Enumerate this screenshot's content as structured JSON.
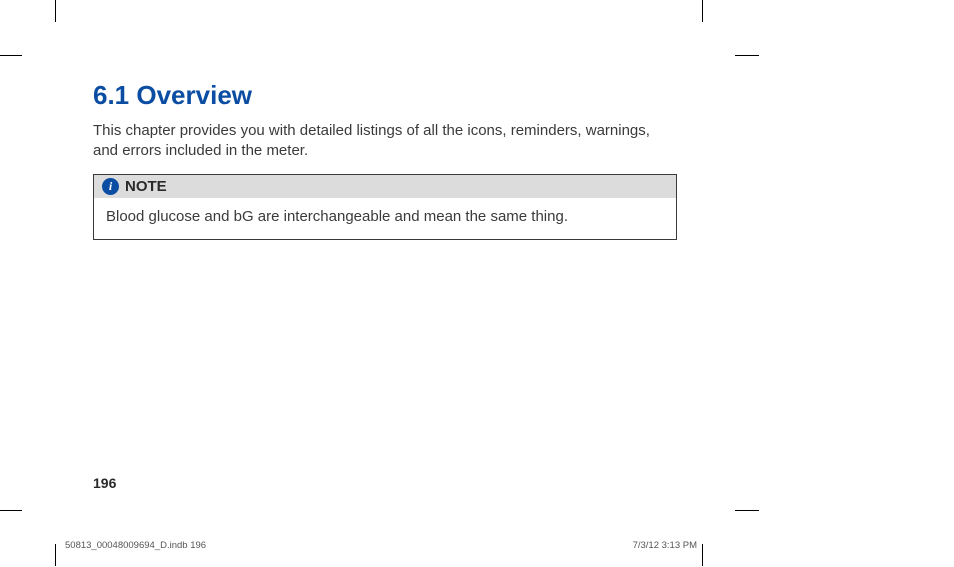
{
  "heading": "6.1 Overview",
  "intro": "This chapter provides you with detailed listings of all the icons, reminders, warnings, and errors included in the meter.",
  "note": {
    "icon_glyph": "i",
    "label": "NOTE",
    "body": "Blood glucose and bG are interchangeable and mean the same thing."
  },
  "page_number": "196",
  "footer": {
    "left": "50813_00048009694_D.indb   196",
    "right": "7/3/12   3:13 PM"
  },
  "colors": {
    "heading_color": "#0b4da2",
    "body_text_color": "#3a3a3a",
    "note_header_bg": "#dcdcdc",
    "note_icon_bg": "#0b4da2",
    "note_icon_fg": "#ffffff",
    "border_color": "#3a3a3a",
    "page_bg": "#ffffff"
  }
}
